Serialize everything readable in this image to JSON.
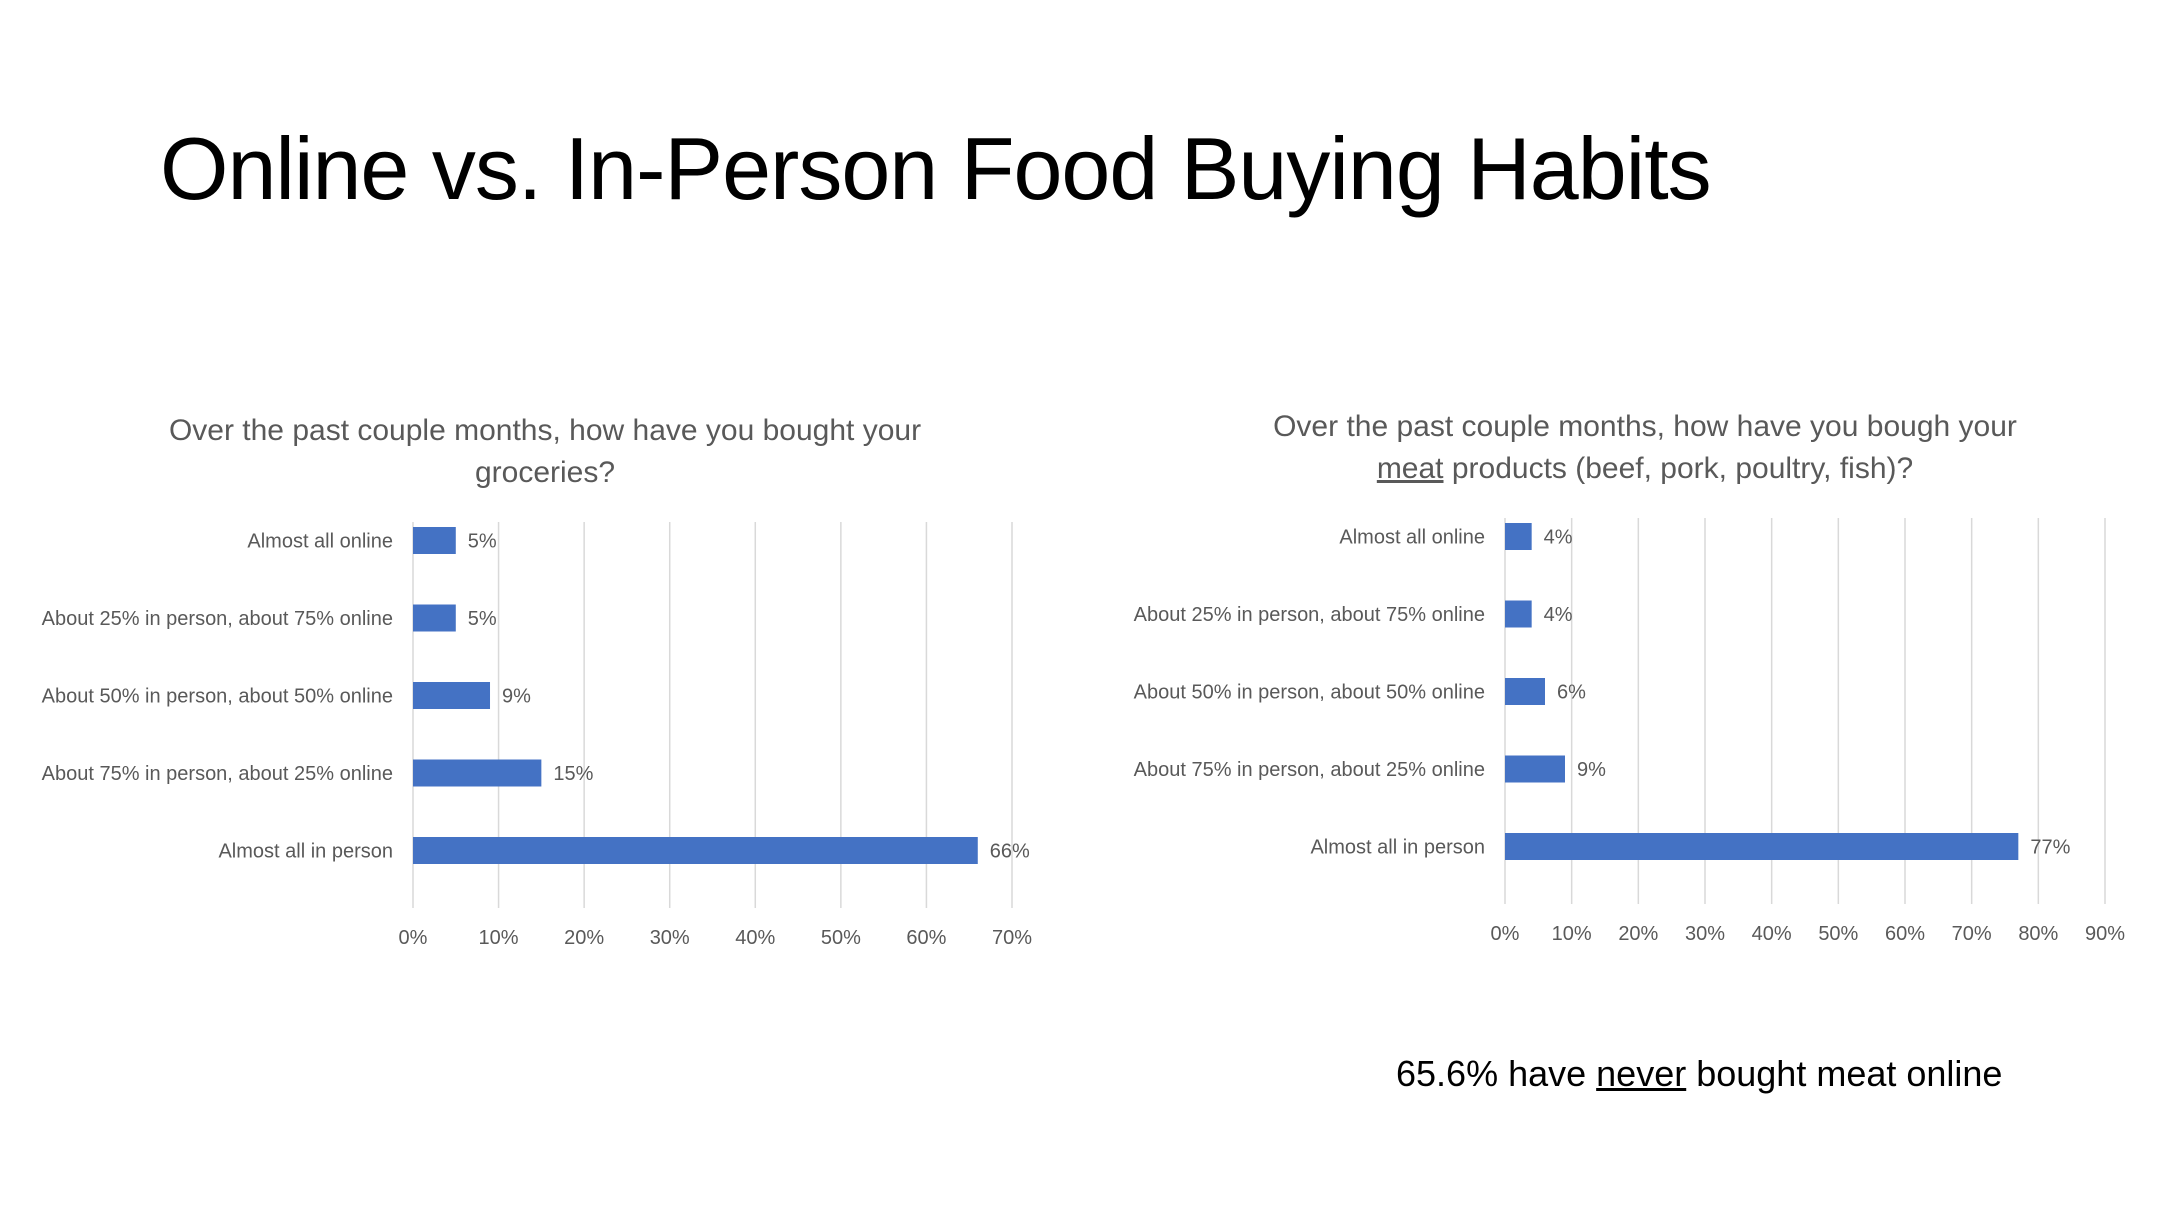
{
  "slide": {
    "title": "Online vs. In-Person Food Buying Habits"
  },
  "colors": {
    "bar": "#4472C4",
    "gridline": "#D9D9D9",
    "label_text": "#595959",
    "title_text": "#000000"
  },
  "chart_data": [
    {
      "type": "bar",
      "orientation": "horizontal",
      "title_line1": "Over the past couple months, how have you bought your",
      "title_line2": "groceries?",
      "categories": [
        "Almost all online",
        "About 25% in person, about 75% online",
        "About 50% in person, about 50% online",
        "About 75% in person, about 25% online",
        "Almost all in person"
      ],
      "values": [
        5,
        5,
        9,
        15,
        66
      ],
      "data_labels": [
        "5%",
        "5%",
        "9%",
        "15%",
        "66%"
      ],
      "xlim": [
        0,
        70
      ],
      "xticks": [
        "0%",
        "10%",
        "20%",
        "30%",
        "40%",
        "50%",
        "60%",
        "70%"
      ],
      "grid": true,
      "legend": "none"
    },
    {
      "type": "bar",
      "orientation": "horizontal",
      "title_line1": "Over the past couple months, how have you bough your",
      "title_line2_underlined": "meat",
      "title_line2_rest": " products (beef, pork, poultry, fish)?",
      "categories": [
        "Almost all online",
        "About 25% in person, about 75% online",
        "About 50% in person, about 50% online",
        "About 75% in person, about 25% online",
        "Almost all in person"
      ],
      "values": [
        4,
        4,
        6,
        9,
        77
      ],
      "data_labels": [
        "4%",
        "4%",
        "6%",
        "9%",
        "77%"
      ],
      "xlim": [
        0,
        90
      ],
      "xticks": [
        "0%",
        "10%",
        "20%",
        "30%",
        "40%",
        "50%",
        "60%",
        "70%",
        "80%",
        "90%"
      ],
      "grid": true,
      "legend": "none"
    }
  ],
  "note": {
    "before": "65.6% have ",
    "underlined": "never",
    "after": " bought meat online"
  }
}
